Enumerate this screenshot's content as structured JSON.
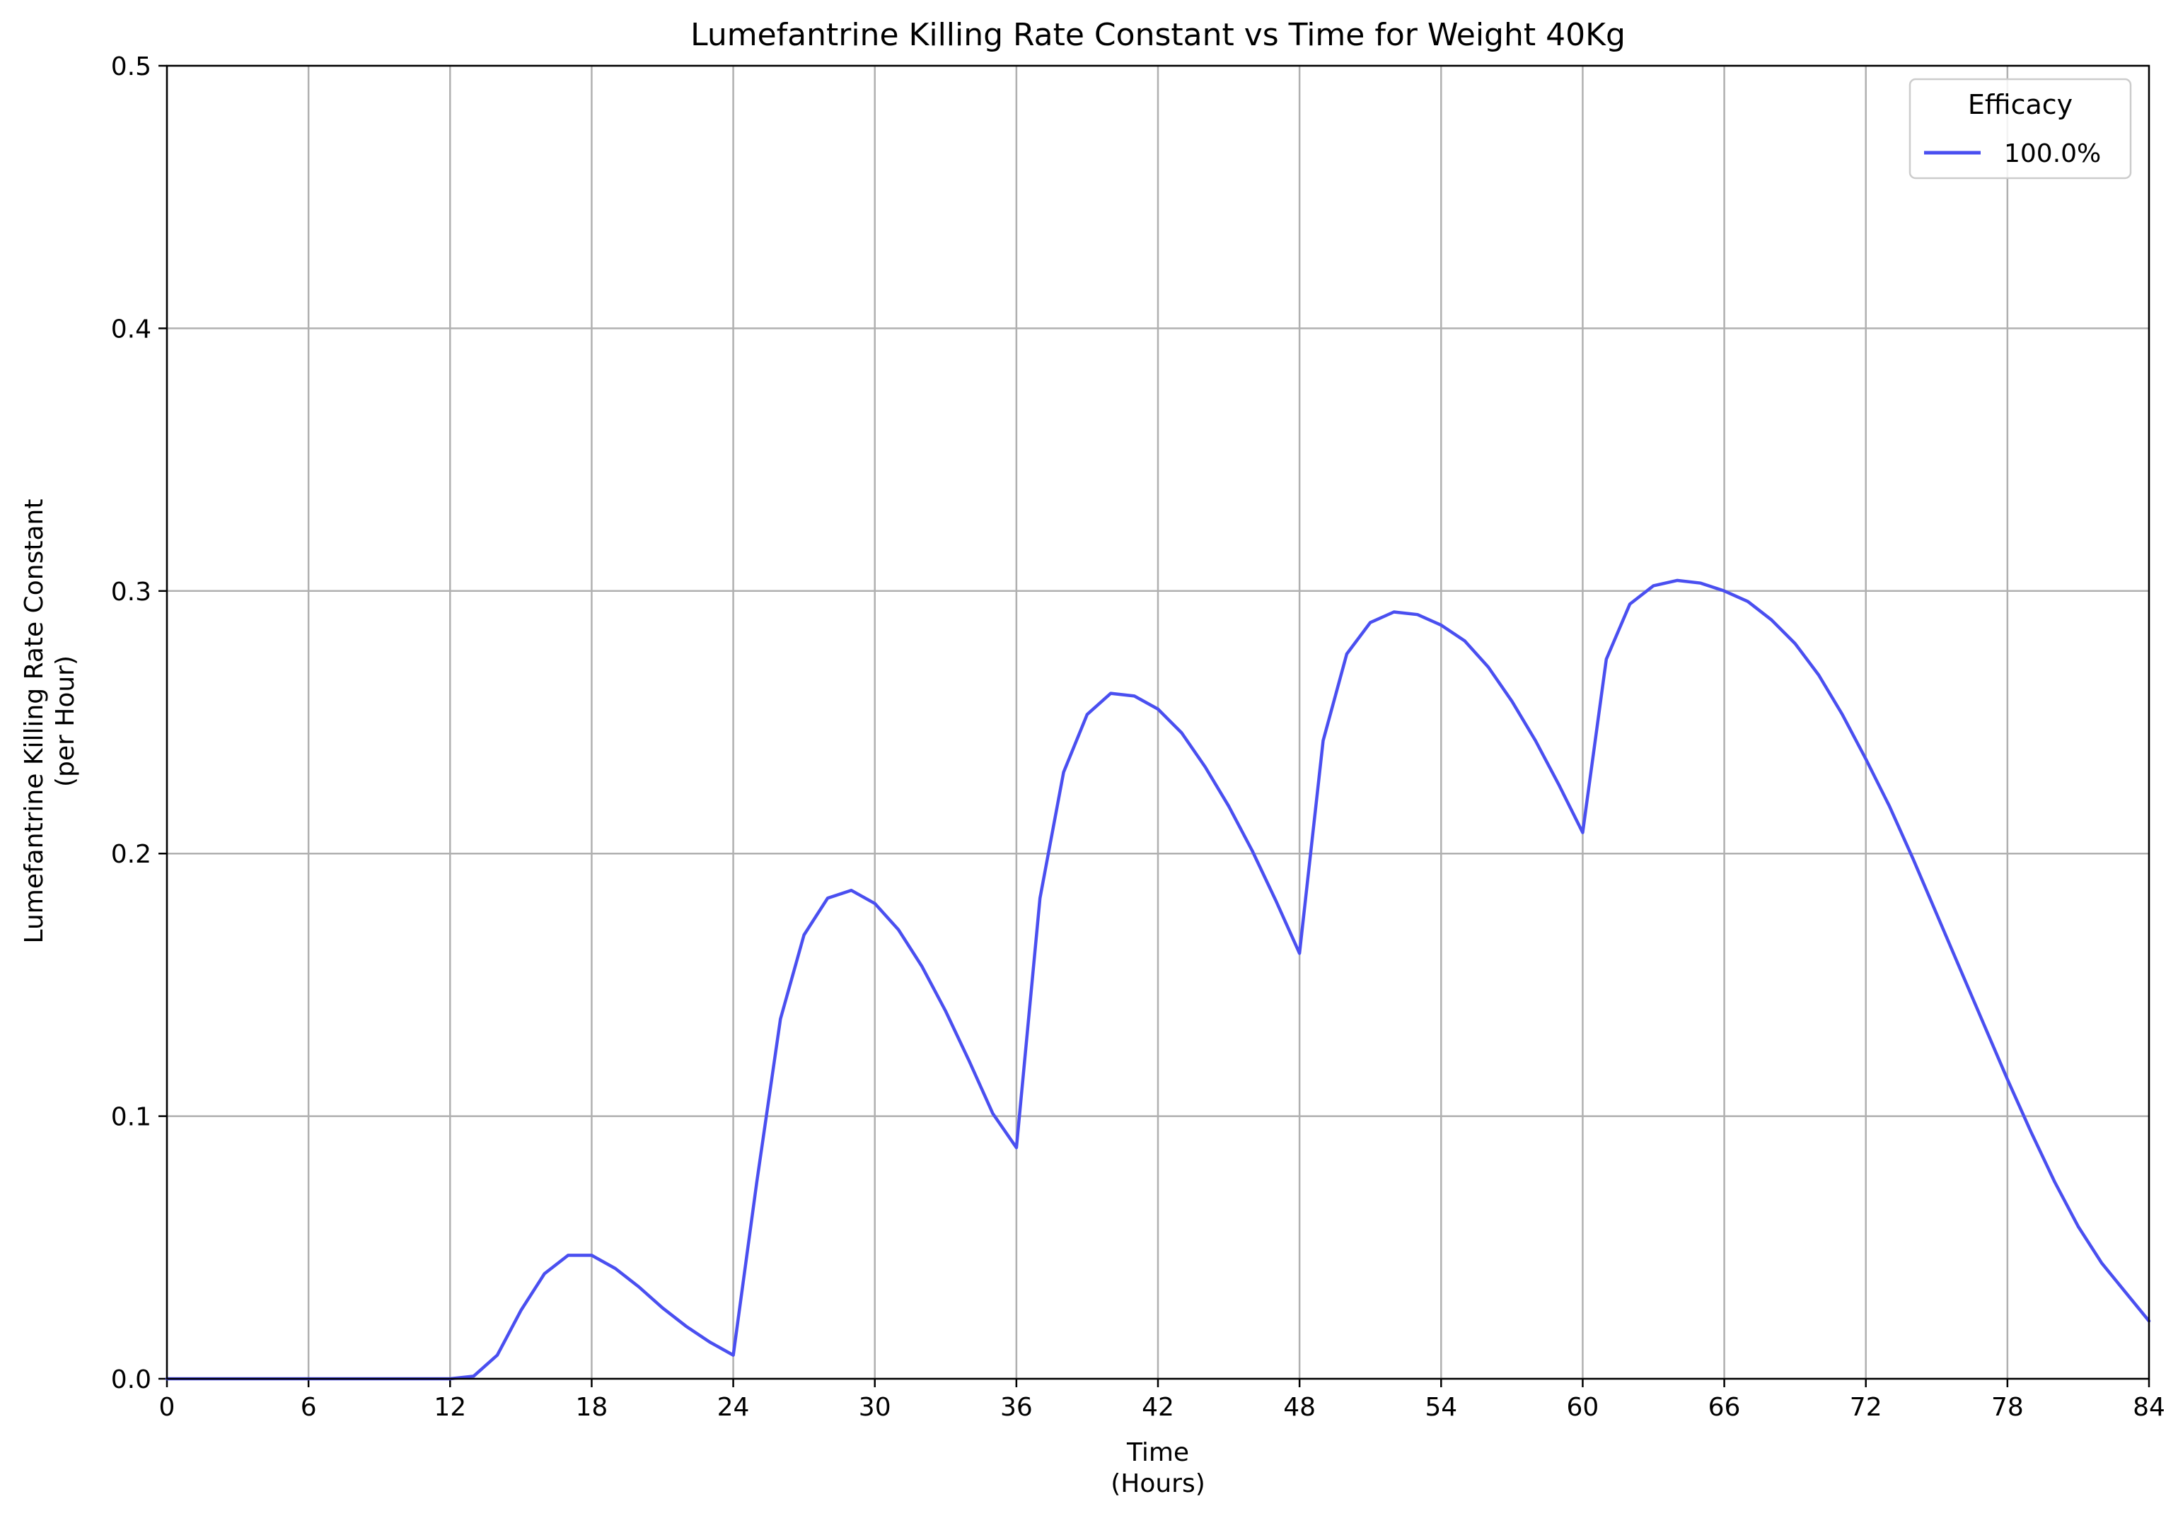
{
  "chart_data": {
    "type": "line",
    "title": "Lumefantrine Killing Rate Constant vs Time for Weight 40Kg",
    "xlabel_line1": "Time",
    "xlabel_line2": "(Hours)",
    "ylabel_line1": "Lumefantrine Killing Rate Constant",
    "ylabel_line2": "(per Hour)",
    "xlim": [
      0,
      84
    ],
    "ylim": [
      0,
      0.5
    ],
    "x_ticks": [
      0,
      6,
      12,
      18,
      24,
      30,
      36,
      42,
      48,
      54,
      60,
      66,
      72,
      78,
      84
    ],
    "y_ticks": [
      0.0,
      0.1,
      0.2,
      0.3,
      0.4,
      0.5
    ],
    "y_tick_labels": [
      "0.0",
      "0.1",
      "0.2",
      "0.3",
      "0.4",
      "0.5"
    ],
    "grid": true,
    "legend": {
      "title": "Efficacy",
      "placement": "top-right"
    },
    "series": [
      {
        "name": "100.0%",
        "color": "#4a4ff0",
        "x": [
          0,
          1,
          2,
          3,
          4,
          5,
          6,
          7,
          8,
          9,
          10,
          11,
          12,
          13,
          14,
          15,
          16,
          17,
          18,
          19,
          20,
          21,
          22,
          23,
          24,
          25,
          26,
          27,
          28,
          29,
          30,
          31,
          32,
          33,
          34,
          35,
          36,
          37,
          38,
          39,
          40,
          41,
          42,
          43,
          44,
          45,
          46,
          47,
          48,
          49,
          50,
          51,
          52,
          53,
          54,
          55,
          56,
          57,
          58,
          59,
          60,
          61,
          62,
          63,
          64,
          65,
          66,
          67,
          68,
          69,
          70,
          71,
          72,
          73,
          74,
          75,
          76,
          77,
          78,
          79,
          80,
          81,
          82,
          83,
          84
        ],
        "values": [
          0,
          0,
          0,
          0,
          0,
          0,
          0,
          0,
          0,
          0,
          0,
          0,
          0,
          0.001,
          0.009,
          0.026,
          0.04,
          0.047,
          0.047,
          0.042,
          0.035,
          0.027,
          0.02,
          0.014,
          0.009,
          0.075,
          0.137,
          0.169,
          0.183,
          0.186,
          0.181,
          0.171,
          0.157,
          0.14,
          0.121,
          0.101,
          0.088,
          0.183,
          0.231,
          0.253,
          0.261,
          0.26,
          0.255,
          0.246,
          0.233,
          0.218,
          0.201,
          0.182,
          0.162,
          0.243,
          0.276,
          0.288,
          0.292,
          0.291,
          0.287,
          0.281,
          0.271,
          0.258,
          0.243,
          0.226,
          0.208,
          0.274,
          0.295,
          0.302,
          0.304,
          0.303,
          0.3,
          0.296,
          0.289,
          0.28,
          0.268,
          0.253,
          0.236,
          0.218,
          0.198,
          0.177,
          0.156,
          0.135,
          0.114,
          0.094,
          0.075,
          0.058,
          0.044,
          0.033,
          0.022
        ]
      }
    ]
  }
}
